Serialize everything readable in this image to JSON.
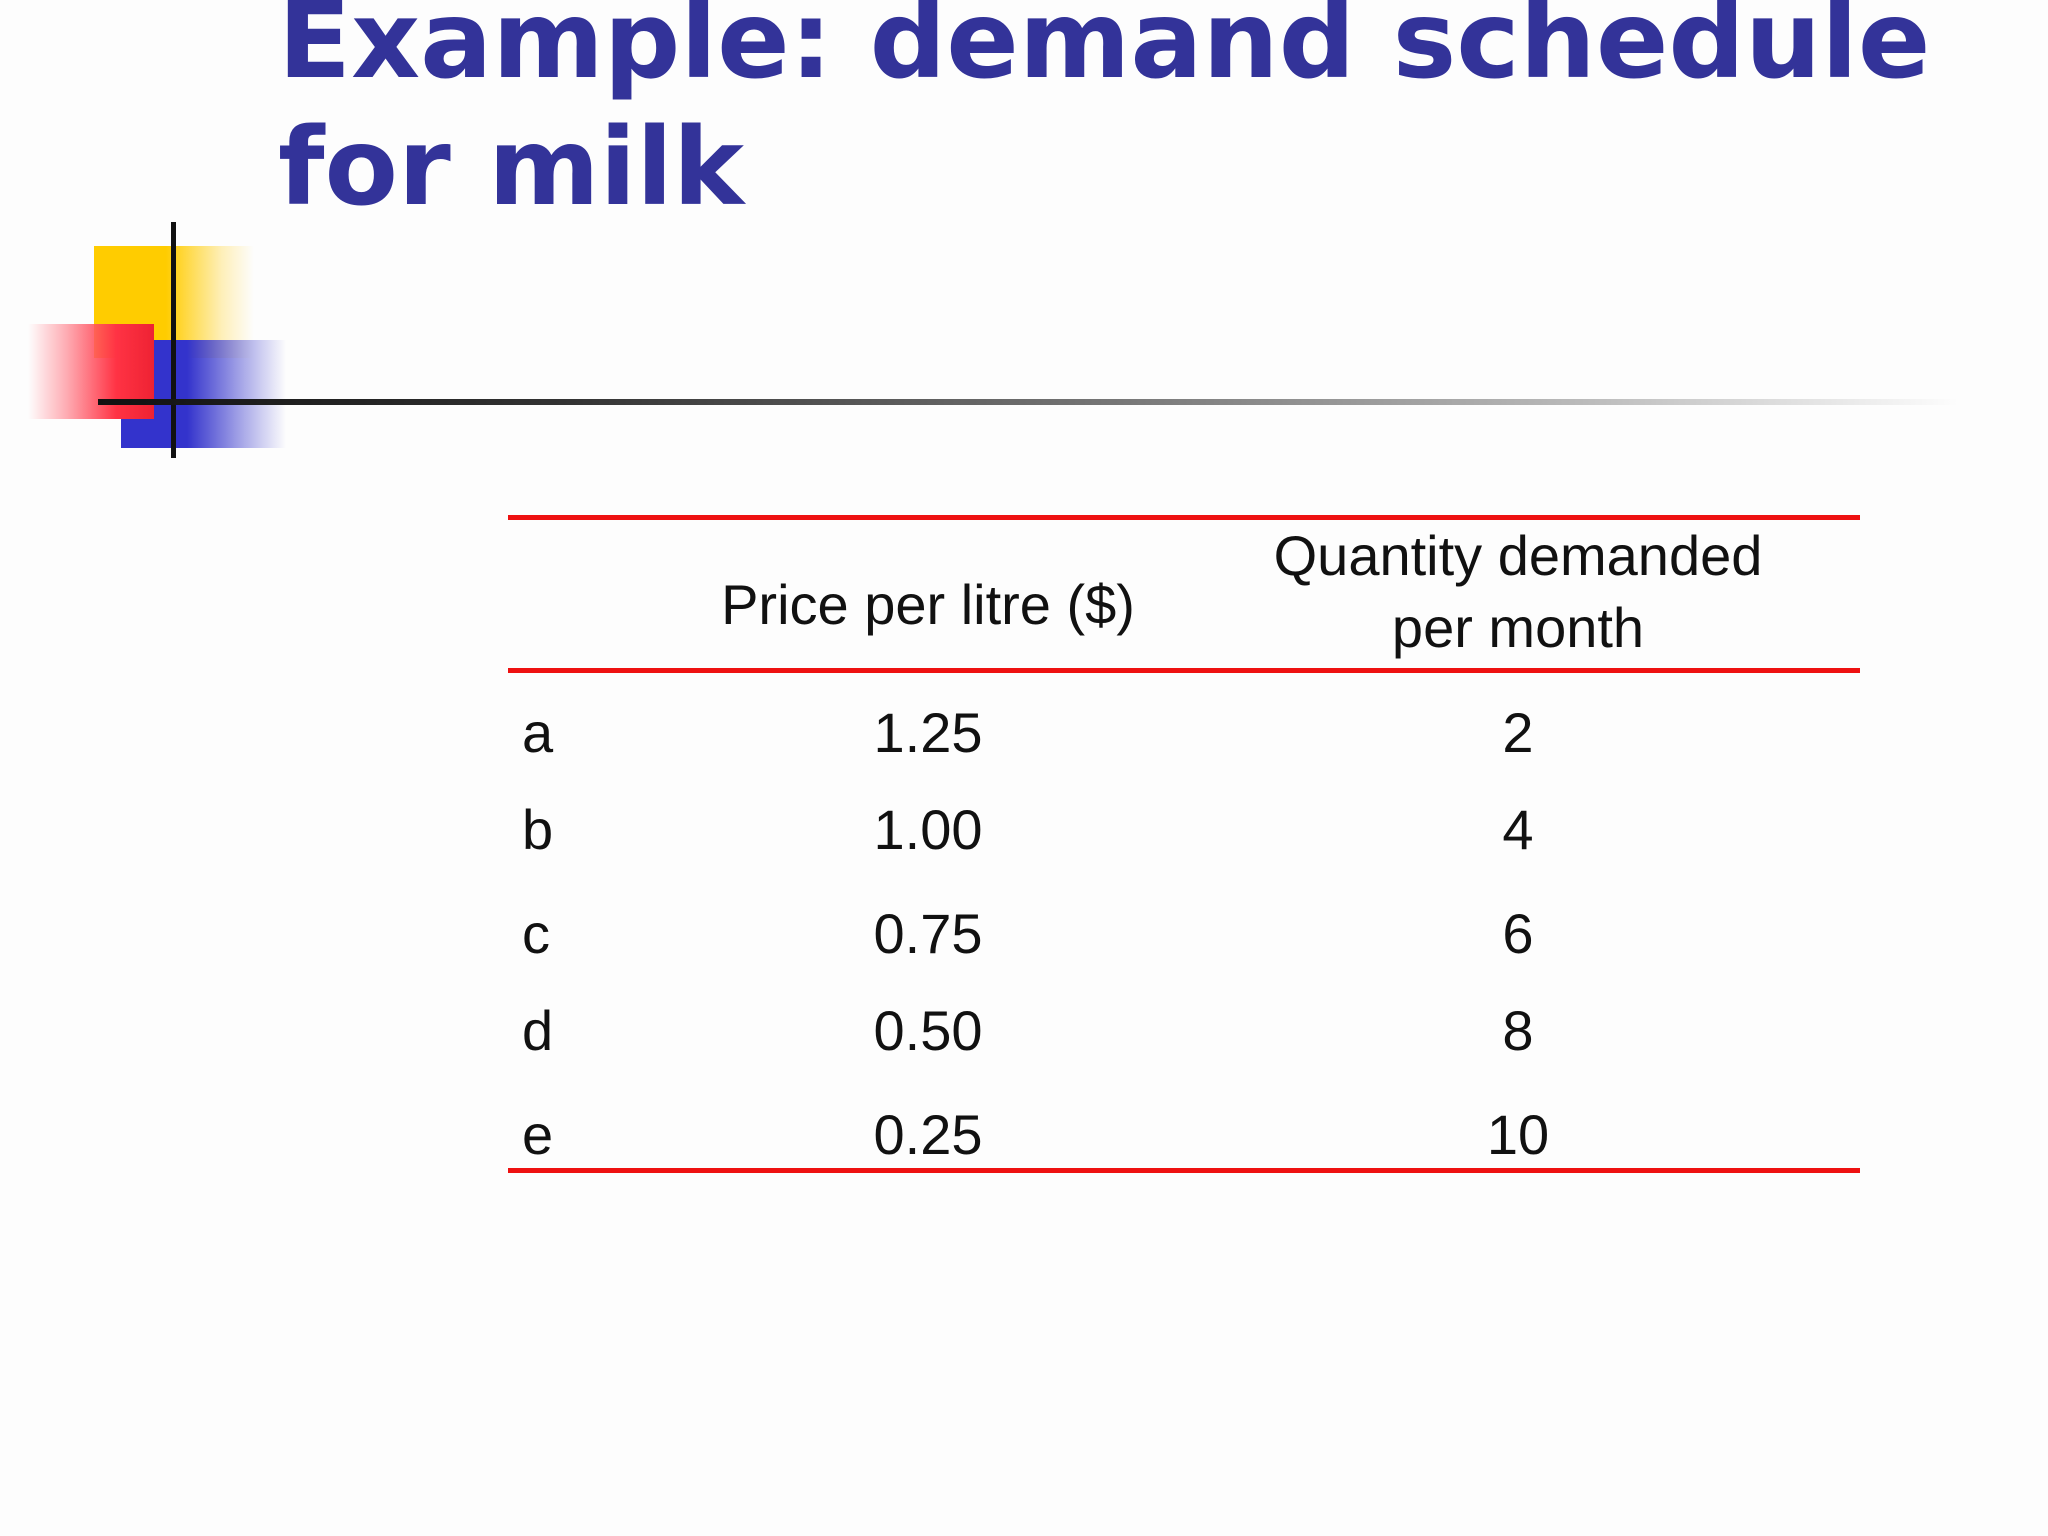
{
  "slide": {
    "title_line1": "Example: demand schedule",
    "title_line2": "for milk",
    "title_color": "#333399",
    "rule_color": "#ee1111"
  },
  "table": {
    "headers": {
      "price": "Price per litre ($)",
      "quantity_line1": "Quantity demanded",
      "quantity_line2": "per month"
    },
    "rows": [
      {
        "label": "a",
        "price": "1.25",
        "quantity": "2"
      },
      {
        "label": "b",
        "price": "1.00",
        "quantity": "4"
      },
      {
        "label": "c",
        "price": "0.75",
        "quantity": "6"
      },
      {
        "label": "d",
        "price": "0.50",
        "quantity": "8"
      },
      {
        "label": "e",
        "price": "0.25",
        "quantity": "10"
      }
    ]
  }
}
